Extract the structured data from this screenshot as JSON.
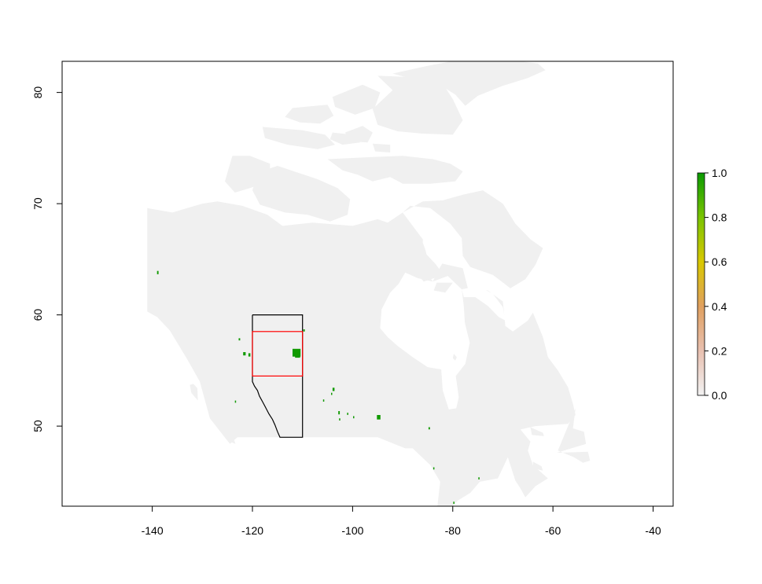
{
  "chart_data": {
    "type": "raster_map",
    "xlim": [
      -158,
      -36
    ],
    "ylim": [
      42.8,
      82.8
    ],
    "x_ticks": [
      {
        "value": -140,
        "label": "-140"
      },
      {
        "value": -120,
        "label": "-120"
      },
      {
        "value": -100,
        "label": "-100"
      },
      {
        "value": -80,
        "label": "-80"
      },
      {
        "value": -60,
        "label": "-60"
      },
      {
        "value": -40,
        "label": "-40"
      }
    ],
    "y_ticks": [
      {
        "value": 50,
        "label": "50"
      },
      {
        "value": 60,
        "label": "60"
      },
      {
        "value": 70,
        "label": "70"
      },
      {
        "value": 80,
        "label": "80"
      }
    ],
    "legend": {
      "range": [
        0,
        1
      ],
      "ticks": [
        {
          "value": 0.0,
          "label": "0.0"
        },
        {
          "value": 0.2,
          "label": "0.2"
        },
        {
          "value": 0.4,
          "label": "0.4"
        },
        {
          "value": 0.6,
          "label": "0.6"
        },
        {
          "value": 0.8,
          "label": "0.8"
        },
        {
          "value": 1.0,
          "label": "1.0"
        }
      ],
      "colors": [
        "#f2f2f2",
        "#e8c0b0",
        "#e0a060",
        "#d9c800",
        "#7ac400",
        "#0a9a00"
      ],
      "placement": "right"
    },
    "colors": {
      "land": "#f0f0f0",
      "presence": "#119a00",
      "alberta_outline": "#000000",
      "extent_box": "#ff0000"
    },
    "alberta_outline": {
      "north": 60,
      "south": 49,
      "east": -110,
      "border_path": [
        [
          -120,
          60
        ],
        [
          -120,
          54
        ],
        [
          -119.6,
          53.6
        ],
        [
          -119,
          53.2
        ],
        [
          -118.6,
          52.7
        ],
        [
          -118,
          52.2
        ],
        [
          -117.4,
          51.7
        ],
        [
          -116.7,
          51.1
        ],
        [
          -116,
          50.6
        ],
        [
          -115.5,
          50.1
        ],
        [
          -115,
          49.5
        ],
        [
          -114.5,
          49
        ]
      ]
    },
    "extent_box": {
      "west": -120,
      "east": -110,
      "south": 54.5,
      "north": 58.5
    },
    "presence_cells": [
      {
        "lon": -111.2,
        "lat": 56.6,
        "w": 1.6,
        "h": 0.7
      },
      {
        "lon": -111.0,
        "lat": 56.4,
        "w": 1.0,
        "h": 0.5
      },
      {
        "lon": -138.9,
        "lat": 63.8,
        "w": 0.3,
        "h": 0.3
      },
      {
        "lon": -122.6,
        "lat": 57.8,
        "w": 0.3,
        "h": 0.2
      },
      {
        "lon": -121.6,
        "lat": 56.5,
        "w": 0.5,
        "h": 0.3
      },
      {
        "lon": -120.6,
        "lat": 56.4,
        "w": 0.4,
        "h": 0.3
      },
      {
        "lon": -109.7,
        "lat": 58.6,
        "w": 0.3,
        "h": 0.2
      },
      {
        "lon": -123.4,
        "lat": 52.2,
        "w": 0.2,
        "h": 0.2
      },
      {
        "lon": -103.8,
        "lat": 53.3,
        "w": 0.4,
        "h": 0.3
      },
      {
        "lon": -104.2,
        "lat": 52.9,
        "w": 0.2,
        "h": 0.2
      },
      {
        "lon": -105.8,
        "lat": 52.3,
        "w": 0.2,
        "h": 0.2
      },
      {
        "lon": -102.7,
        "lat": 51.2,
        "w": 0.3,
        "h": 0.3
      },
      {
        "lon": -102.6,
        "lat": 50.6,
        "w": 0.2,
        "h": 0.2
      },
      {
        "lon": -101.0,
        "lat": 51.1,
        "w": 0.2,
        "h": 0.2
      },
      {
        "lon": -99.8,
        "lat": 50.8,
        "w": 0.2,
        "h": 0.2
      },
      {
        "lon": -94.8,
        "lat": 50.8,
        "w": 0.7,
        "h": 0.4
      },
      {
        "lon": -84.7,
        "lat": 49.8,
        "w": 0.3,
        "h": 0.2
      },
      {
        "lon": -74.8,
        "lat": 45.3,
        "w": 0.2,
        "h": 0.2
      },
      {
        "lon": -79.8,
        "lat": 43.1,
        "w": 0.2,
        "h": 0.2
      },
      {
        "lon": -83.8,
        "lat": 46.2,
        "w": 0.2,
        "h": 0.2
      }
    ],
    "canada_polygon": [
      [
        -141,
        69.6
      ],
      [
        -136,
        69.2
      ],
      [
        -130,
        70.0
      ],
      [
        -127,
        70.2
      ],
      [
        -122,
        69.8
      ],
      [
        -117,
        69.0
      ],
      [
        -114,
        68.0
      ],
      [
        -108,
        68.3
      ],
      [
        -100,
        68.0
      ],
      [
        -95,
        68.6
      ],
      [
        -93,
        68.3
      ],
      [
        -90,
        69.2
      ],
      [
        -88,
        68.0
      ],
      [
        -86,
        66.8
      ],
      [
        -85,
        65.0
      ],
      [
        -82,
        64.6
      ],
      [
        -78,
        64.2
      ],
      [
        -77,
        62.4
      ],
      [
        -73,
        62.2
      ],
      [
        -70,
        61.2
      ],
      [
        -69.5,
        59.0
      ],
      [
        -68,
        58.5
      ],
      [
        -65,
        59.5
      ],
      [
        -64,
        60.2
      ],
      [
        -62,
        58.0
      ],
      [
        -61,
        56.2
      ],
      [
        -59,
        55.0
      ],
      [
        -57,
        53.5
      ],
      [
        -56,
        52.0
      ],
      [
        -55.5,
        51.0
      ],
      [
        -57,
        50.2
      ],
      [
        -60.5,
        50.1
      ],
      [
        -63.5,
        50.0
      ],
      [
        -66.5,
        49.7
      ],
      [
        -64.5,
        48.6
      ],
      [
        -65,
        47.8
      ],
      [
        -64,
        46.5
      ],
      [
        -62,
        45.7
      ],
      [
        -61,
        45.3
      ],
      [
        -63.5,
        44.6
      ],
      [
        -65.5,
        43.6
      ],
      [
        -66.5,
        44.4
      ],
      [
        -67.5,
        45.1
      ],
      [
        -69,
        47.2
      ],
      [
        -71,
        45.3
      ],
      [
        -74.6,
        45.0
      ],
      [
        -76.5,
        44.0
      ],
      [
        -79,
        43.3
      ],
      [
        -80.5,
        42.6
      ],
      [
        -82.5,
        41.8
      ],
      [
        -83.2,
        42.3
      ],
      [
        -82.5,
        45.0
      ],
      [
        -84.5,
        46.5
      ],
      [
        -88,
        48.0
      ],
      [
        -89.5,
        48.0
      ],
      [
        -95,
        49.0
      ],
      [
        -123,
        49.0
      ],
      [
        -124.5,
        48.4
      ],
      [
        -128.5,
        50.7
      ],
      [
        -130.5,
        54.0
      ],
      [
        -133,
        56.0
      ],
      [
        -136.5,
        58.6
      ],
      [
        -139,
        59.8
      ],
      [
        -141,
        60.3
      ]
    ],
    "hudson_bay": [
      [
        -94.5,
        58.8
      ],
      [
        -93,
        58.0
      ],
      [
        -91,
        57.2
      ],
      [
        -88,
        56.2
      ],
      [
        -85,
        55.3
      ],
      [
        -82.3,
        55.1
      ],
      [
        -82,
        53.2
      ],
      [
        -80.8,
        51.5
      ],
      [
        -79.3,
        51.6
      ],
      [
        -78.8,
        52.6
      ],
      [
        -79.4,
        54.5
      ],
      [
        -77.5,
        55.6
      ],
      [
        -76.6,
        57.5
      ],
      [
        -77.6,
        59.3
      ],
      [
        -77.8,
        60.8
      ],
      [
        -78.2,
        62.3
      ],
      [
        -81,
        63.5
      ],
      [
        -84,
        63.0
      ],
      [
        -87,
        63.3
      ],
      [
        -89.5,
        63.8
      ],
      [
        -90.8,
        62.8
      ],
      [
        -92.5,
        62.0
      ],
      [
        -94.2,
        60.5
      ]
    ],
    "hudson_strait": [
      [
        -78.2,
        62.3
      ],
      [
        -75,
        62.6
      ],
      [
        -72,
        61.9
      ],
      [
        -70,
        60.7
      ],
      [
        -69.5,
        59.5
      ],
      [
        -70.8,
        59.8
      ],
      [
        -73,
        60.8
      ],
      [
        -75.5,
        61.6
      ],
      [
        -77.8,
        61.6
      ]
    ],
    "foxe_basin": [
      [
        -84,
        63.0
      ],
      [
        -82.5,
        64.3
      ],
      [
        -80.5,
        65.8
      ],
      [
        -79,
        67.2
      ],
      [
        -81,
        68.6
      ],
      [
        -84,
        68.8
      ],
      [
        -85.8,
        68.0
      ],
      [
        -86,
        66.5
      ],
      [
        -84.8,
        65.0
      ],
      [
        -85.8,
        64.3
      ]
    ],
    "islands": [
      [
        [
          -90,
          69.2
        ],
        [
          -86,
          70.2
        ],
        [
          -82,
          70.3
        ],
        [
          -78,
          70.8
        ],
        [
          -74,
          71.2
        ],
        [
          -70,
          70.0
        ],
        [
          -67.5,
          68.2
        ],
        [
          -64.5,
          66.8
        ],
        [
          -62,
          66.0
        ],
        [
          -63.5,
          64.5
        ],
        [
          -65.5,
          63.2
        ],
        [
          -68.5,
          62.4
        ],
        [
          -72,
          63.6
        ],
        [
          -76.5,
          64.3
        ],
        [
          -78,
          65.3
        ],
        [
          -78.2,
          66.9
        ],
        [
          -80.5,
          68.2
        ],
        [
          -84.5,
          69.6
        ],
        [
          -88.5,
          69.8
        ]
      ],
      [
        [
          -105,
          74.0
        ],
        [
          -96,
          74.2
        ],
        [
          -90,
          74.3
        ],
        [
          -84,
          74.0
        ],
        [
          -80.5,
          73.6
        ],
        [
          -78,
          72.9
        ],
        [
          -79.5,
          72.0
        ],
        [
          -84.5,
          71.8
        ],
        [
          -90,
          71.8
        ],
        [
          -92.5,
          72.4
        ],
        [
          -96,
          72.0
        ],
        [
          -99,
          72.6
        ],
        [
          -102,
          73.0
        ]
      ],
      [
        [
          -115,
          73.4
        ],
        [
          -119,
          72.8
        ],
        [
          -120,
          71.2
        ],
        [
          -118.5,
          69.9
        ],
        [
          -113.5,
          69.2
        ],
        [
          -109,
          69.0
        ],
        [
          -104.5,
          68.4
        ],
        [
          -101,
          69.0
        ],
        [
          -100.5,
          70.4
        ],
        [
          -103,
          71.4
        ],
        [
          -107,
          72.2
        ],
        [
          -111,
          72.8
        ]
      ],
      [
        [
          -125.5,
          72.0
        ],
        [
          -124,
          74.3
        ],
        [
          -120.5,
          74.3
        ],
        [
          -116.5,
          73.6
        ],
        [
          -116.5,
          72.0
        ],
        [
          -120.5,
          71.4
        ],
        [
          -123.5,
          71.0
        ]
      ],
      [
        [
          -95,
          81.5
        ],
        [
          -84,
          81.3
        ],
        [
          -82,
          80.8
        ],
        [
          -80,
          79.4
        ],
        [
          -78,
          77.5
        ],
        [
          -80,
          76.2
        ],
        [
          -86,
          76.3
        ],
        [
          -91,
          76.5
        ],
        [
          -95,
          77.1
        ],
        [
          -96,
          78.5
        ],
        [
          -92,
          80.2
        ]
      ],
      [
        [
          -92,
          81.7
        ],
        [
          -85,
          82.4
        ],
        [
          -78,
          83.0
        ],
        [
          -70,
          83.0
        ],
        [
          -63,
          82.6
        ],
        [
          -61.5,
          82.0
        ],
        [
          -65,
          81.3
        ],
        [
          -70,
          80.6
        ],
        [
          -75,
          79.7
        ],
        [
          -77.5,
          78.8
        ],
        [
          -79.5,
          79.8
        ],
        [
          -83,
          80.8
        ],
        [
          -88,
          81.2
        ]
      ],
      [
        [
          -104,
          79.6
        ],
        [
          -98,
          80.7
        ],
        [
          -94.5,
          80.0
        ],
        [
          -95.6,
          78.6
        ],
        [
          -99.5,
          78.0
        ],
        [
          -103.5,
          78.7
        ]
      ],
      [
        [
          -112,
          78.6
        ],
        [
          -105,
          78.9
        ],
        [
          -103.8,
          77.9
        ],
        [
          -106.5,
          77.2
        ],
        [
          -110.5,
          77.3
        ],
        [
          -113.5,
          77.8
        ]
      ],
      [
        [
          -118,
          76.9
        ],
        [
          -110,
          76.6
        ],
        [
          -105.5,
          76.2
        ],
        [
          -103.5,
          75.3
        ],
        [
          -107,
          74.9
        ],
        [
          -113,
          75.3
        ],
        [
          -117.5,
          75.9
        ]
      ],
      [
        [
          -98,
          77.0
        ],
        [
          -96,
          76.4
        ],
        [
          -97,
          75.5
        ],
        [
          -100.5,
          75.6
        ],
        [
          -101.5,
          76.4
        ]
      ],
      [
        [
          -96,
          75.4
        ],
        [
          -92.5,
          75.3
        ],
        [
          -92.5,
          74.6
        ],
        [
          -95.5,
          74.7
        ]
      ],
      [
        [
          -104,
          76.4
        ],
        [
          -100,
          76.2
        ],
        [
          -98.5,
          75.5
        ],
        [
          -102,
          75.3
        ],
        [
          -104.5,
          75.8
        ]
      ],
      [
        [
          -80,
          62.9
        ],
        [
          -81.5,
          62.0
        ],
        [
          -83.8,
          62.2
        ],
        [
          -83.2,
          62.9
        ]
      ],
      [
        [
          -86,
          65.8
        ],
        [
          -83.5,
          64.6
        ],
        [
          -81.8,
          63.6
        ],
        [
          -85.8,
          63.0
        ],
        [
          -87.5,
          63.9
        ],
        [
          -88.5,
          65.0
        ],
        [
          -87.2,
          65.6
        ]
      ],
      [
        [
          -79.8,
          56.5
        ],
        [
          -79.2,
          56.2
        ],
        [
          -79.5,
          55.9
        ],
        [
          -80,
          56.1
        ]
      ],
      [
        [
          -131.8,
          53.8
        ],
        [
          -131.0,
          53.4
        ],
        [
          -130.9,
          52.3
        ],
        [
          -132.2,
          53.0
        ],
        [
          -132.5,
          53.7
        ]
      ],
      [
        [
          -128.3,
          50.8
        ],
        [
          -125.5,
          50.3
        ],
        [
          -124.0,
          49.2
        ],
        [
          -123.4,
          48.4
        ],
        [
          -125.0,
          48.7
        ],
        [
          -127.2,
          50.0
        ]
      ],
      [
        [
          -64.5,
          49.9
        ],
        [
          -62.0,
          49.4
        ],
        [
          -61.8,
          49.1
        ],
        [
          -64.2,
          49.2
        ]
      ],
      [
        [
          -59.3,
          47.6
        ],
        [
          -53.0,
          47.7
        ],
        [
          -52.6,
          46.9
        ],
        [
          -54.0,
          46.7
        ],
        [
          -55.8,
          47.2
        ],
        [
          -59.0,
          47.8
        ],
        [
          -57.0,
          50.0
        ],
        [
          -55.5,
          51.6
        ],
        [
          -56.0,
          49.8
        ],
        [
          -53.8,
          49.5
        ],
        [
          -53.4,
          48.4
        ]
      ],
      [
        [
          -64.0,
          46.8
        ],
        [
          -62.3,
          46.4
        ],
        [
          -62.0,
          46.0
        ],
        [
          -63.9,
          46.2
        ]
      ]
    ]
  }
}
